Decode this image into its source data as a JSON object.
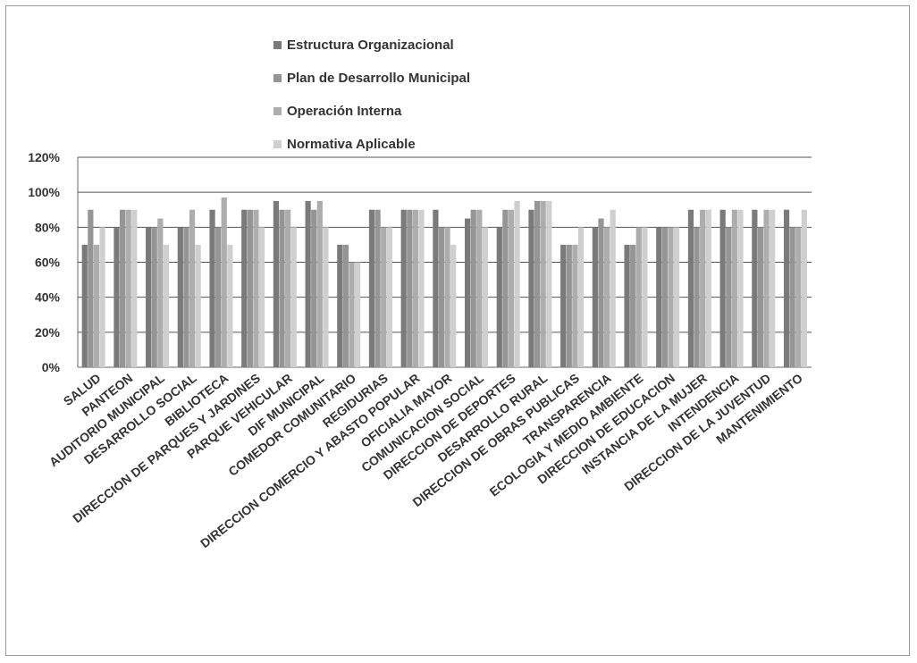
{
  "chart_data": {
    "type": "bar",
    "ylim": [
      0,
      1.2
    ],
    "yticks": [
      "0%",
      "20%",
      "40%",
      "60%",
      "80%",
      "100%",
      "120%"
    ],
    "grid": true,
    "legend_position": "top",
    "categories": [
      "SALUD",
      "PANTEON",
      "AUDITORIO MUNICIPAL",
      "DESARROLLO SOCIAL",
      "BIBLIOTECA",
      "DIRECCION DE PARQUES Y JARDINES",
      "PARQUE VEHICULAR",
      "DIF MUNICIPAL",
      "COMEDOR COMUNITARIO",
      "REGIDURIAS",
      "DIRECCION COMERCIO Y ABASTO POPULAR",
      "OFICIALIA MAYOR",
      "COMUNICACION SOCIAL",
      "DIRECCION DE DEPORTES",
      "DESARROLLO RURAL",
      "DIRECCION DE OBRAS PUBLICAS",
      "TRANSPARENCIA",
      "ECOLOGIA Y MEDIO AMBIENTE",
      "DIRECCION DE EDUCACION",
      "INSTANCIA DE LA MUJER",
      "INTENDENCIA",
      "DIRECCION DE LA JUVENTUD",
      "MANTENIMIENTO"
    ],
    "series": [
      {
        "name": "Estructura Organizacional",
        "color": "#7a7a7a",
        "values": [
          0.7,
          0.8,
          0.8,
          0.8,
          0.9,
          0.9,
          0.95,
          0.95,
          0.7,
          0.9,
          0.9,
          0.9,
          0.85,
          0.8,
          0.9,
          0.7,
          0.8,
          0.7,
          0.8,
          0.9,
          0.9,
          0.9,
          0.9
        ]
      },
      {
        "name": "Plan de Desarrollo Municipal",
        "color": "#959595",
        "values": [
          0.9,
          0.9,
          0.8,
          0.8,
          0.8,
          0.9,
          0.9,
          0.9,
          0.7,
          0.9,
          0.9,
          0.8,
          0.9,
          0.9,
          0.95,
          0.7,
          0.85,
          0.7,
          0.8,
          0.8,
          0.8,
          0.8,
          0.8
        ]
      },
      {
        "name": "Operación Interna",
        "color": "#adadad",
        "values": [
          0.7,
          0.9,
          0.85,
          0.9,
          0.97,
          0.9,
          0.9,
          0.95,
          0.6,
          0.8,
          0.9,
          0.8,
          0.9,
          0.9,
          0.95,
          0.7,
          0.8,
          0.8,
          0.8,
          0.9,
          0.9,
          0.9,
          0.8
        ]
      },
      {
        "name": "Normativa Aplicable",
        "color": "#cfcfcf",
        "values": [
          0.8,
          0.9,
          0.7,
          0.7,
          0.7,
          0.8,
          0.8,
          0.8,
          0.6,
          0.8,
          0.9,
          0.7,
          0.8,
          0.95,
          0.95,
          0.8,
          0.9,
          0.8,
          0.8,
          0.9,
          0.9,
          0.9,
          0.9
        ]
      }
    ]
  }
}
